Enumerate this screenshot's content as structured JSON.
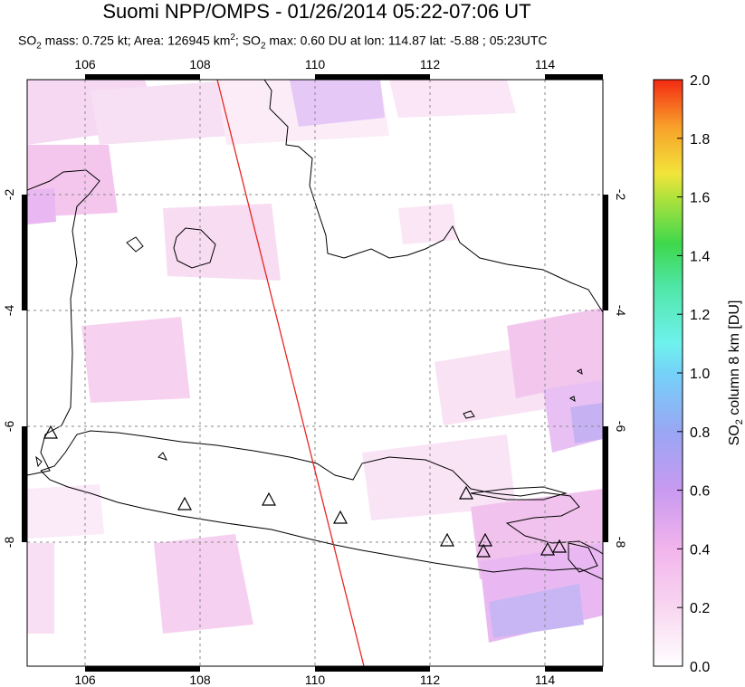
{
  "title": "Suomi NPP/OMPS - 01/26/2014 05:22-07:06 UT",
  "subtitle": {
    "mass_prefix": "SO",
    "mass_sub": "2",
    "mass_text": " mass: 0.725 kt; Area: 126945 km",
    "area_sup": "2",
    "max_prefix": "; SO",
    "max_sub": "2",
    "max_text": " max: 0.60 DU at lon: 114.87 lat: -5.88 ; 05:23UTC"
  },
  "map": {
    "lon_ticks": [
      "106",
      "108",
      "110",
      "112",
      "114"
    ],
    "lat_ticks": [
      "-2",
      "-4",
      "-6",
      "-8"
    ],
    "lon_range": [
      105,
      115
    ],
    "lat_range": [
      -10.2,
      -0.1
    ],
    "volcano_marker": "triangle-icon",
    "orbit_line_color": "#e8231e",
    "coast_color": "#000000"
  },
  "colorbar": {
    "label_prefix": "SO",
    "label_sub": "2",
    "label_rest": " column 8 km [DU]",
    "ticks": [
      "2.0",
      "1.8",
      "1.6",
      "1.4",
      "1.2",
      "1.0",
      "0.8",
      "0.6",
      "0.4",
      "0.2",
      "0.0"
    ],
    "range": [
      0.0,
      2.0
    ]
  }
}
